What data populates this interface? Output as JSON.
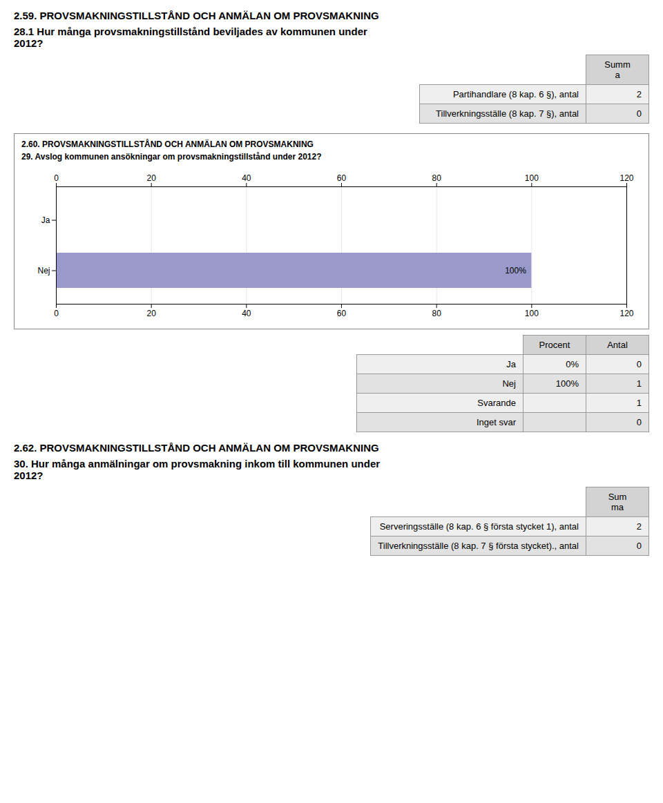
{
  "chart_data": {
    "type": "bar",
    "orientation": "horizontal",
    "title": "2.60. PROVSMAKNINGSTILLSTÅND OCH ANMÄLAN OM PROVSMAKNING",
    "subtitle": "29. Avslog kommunen ansökningar om provsmakningstillstånd under 2012?",
    "categories": [
      "Nej",
      "Ja"
    ],
    "values": [
      100,
      0
    ],
    "colors": [
      "#9999cc",
      "#c0c0d8"
    ],
    "data_labels": true,
    "value_labels": [
      "100%",
      null
    ],
    "xlim": [
      0,
      120
    ],
    "xticks": [
      0,
      20,
      40,
      60,
      80,
      100,
      120
    ],
    "grid": true,
    "annotations": [
      "2.59. PROVSMAKNINGSTILLSTÅND OCH ANMÄLAN OM PROVSMAKNING",
      "28.1 Hur många provsmakningstillstånd beviljades av kommunen under\n2012?",
      [
        [
          "Summ\na"
        ],
        [
          "Partihandlare (8 kap. 6 §), antal",
          "2"
        ],
        [
          "Tillverkningsställe (8 kap. 7 §), antal",
          "0"
        ]
      ],
      [
        [
          "Procent",
          "Antal"
        ],
        [
          "Ja",
          "0%",
          "0"
        ],
        [
          "Nej",
          "100%",
          "1"
        ],
        [
          "Svarande",
          null,
          "1"
        ],
        [
          "Inget svar",
          null,
          "0"
        ]
      ],
      "2.62. PROVSMAKNINGSTILLSTÅND OCH ANMÄLAN OM PROVSMAKNING",
      "30. Hur många anmälningar om provsmakning inkom till kommunen under\n2012?",
      [
        [
          "Sum\nma"
        ],
        [
          "Serveringsställe (8 kap. 6 § första stycket 1), antal",
          "2"
        ],
        [
          "Tillverkningsställe (8 kap. 7 § första stycket)., antal",
          "0"
        ]
      ]
    ]
  }
}
